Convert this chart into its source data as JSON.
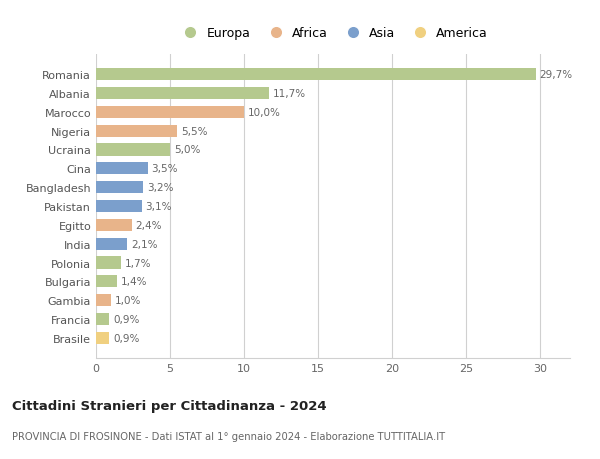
{
  "countries": [
    "Romania",
    "Albania",
    "Marocco",
    "Nigeria",
    "Ucraina",
    "Cina",
    "Bangladesh",
    "Pakistan",
    "Egitto",
    "India",
    "Polonia",
    "Bulgaria",
    "Gambia",
    "Francia",
    "Brasile"
  ],
  "values": [
    29.7,
    11.7,
    10.0,
    5.5,
    5.0,
    3.5,
    3.2,
    3.1,
    2.4,
    2.1,
    1.7,
    1.4,
    1.0,
    0.9,
    0.9
  ],
  "labels": [
    "29,7%",
    "11,7%",
    "10,0%",
    "5,5%",
    "5,0%",
    "3,5%",
    "3,2%",
    "3,1%",
    "2,4%",
    "2,1%",
    "1,7%",
    "1,4%",
    "1,0%",
    "0,9%",
    "0,9%"
  ],
  "colors": [
    "#b5c98e",
    "#b5c98e",
    "#e8b48a",
    "#e8b48a",
    "#b5c98e",
    "#7b9fcc",
    "#7b9fcc",
    "#7b9fcc",
    "#e8b48a",
    "#7b9fcc",
    "#b5c98e",
    "#b5c98e",
    "#e8b48a",
    "#b5c98e",
    "#f0d080"
  ],
  "legend_labels": [
    "Europa",
    "Africa",
    "Asia",
    "America"
  ],
  "legend_colors": [
    "#b5c98e",
    "#e8b48a",
    "#7b9fcc",
    "#f0d080"
  ],
  "title": "Cittadini Stranieri per Cittadinanza - 2024",
  "subtitle": "PROVINCIA DI FROSINONE - Dati ISTAT al 1° gennaio 2024 - Elaborazione TUTTITALIA.IT",
  "xlim": [
    0,
    32
  ],
  "xticks": [
    0,
    5,
    10,
    15,
    20,
    25,
    30
  ],
  "bg_color": "#ffffff",
  "grid_color": "#d0d0d0"
}
